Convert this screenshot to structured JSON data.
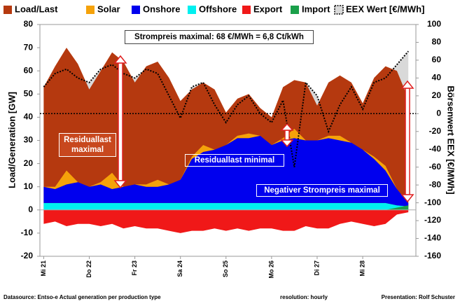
{
  "chart_data": {
    "type": "area",
    "legend_position": "top",
    "x": [
      0,
      6,
      12,
      18,
      24,
      30,
      36,
      42,
      48,
      54,
      60,
      66,
      72,
      78,
      84,
      90,
      96,
      102,
      108,
      114,
      120,
      126,
      132,
      138,
      144,
      150,
      156,
      162,
      168,
      174,
      180,
      186,
      192
    ],
    "xlim": [
      -2,
      196
    ],
    "xticks": [
      {
        "value": 0,
        "label": "Mi 21"
      },
      {
        "value": 24,
        "label": "Do 22"
      },
      {
        "value": 48,
        "label": "Fr 23"
      },
      {
        "value": 72,
        "label": "Sa 24"
      },
      {
        "value": 96,
        "label": "So 25"
      },
      {
        "value": 120,
        "label": "Mo 26"
      },
      {
        "value": 144,
        "label": "Di 27"
      },
      {
        "value": 168,
        "label": "Mi 28"
      }
    ],
    "ylabel": "Load/Generation  [GW]",
    "ylim": [
      -20,
      80
    ],
    "yticks": [
      -20,
      -10,
      0,
      10,
      20,
      30,
      40,
      50,
      60,
      70,
      80
    ],
    "y2label": "Börsenwert  EEX  [€/MWh]",
    "y2lim": [
      -160,
      100
    ],
    "y2ticks": [
      -160,
      -140,
      -120,
      -100,
      -80,
      -60,
      -40,
      -20,
      0,
      20,
      40,
      60,
      80,
      100
    ],
    "series": [
      {
        "name": "Load/Last",
        "color": "#b5390f",
        "values": [
          53,
          62,
          70,
          63,
          52,
          60,
          68,
          64,
          55,
          62,
          64,
          57,
          47,
          52,
          55,
          52,
          42,
          48,
          50,
          44,
          40,
          53,
          56,
          55,
          45,
          55,
          58,
          55,
          46,
          57,
          62,
          60,
          48
        ]
      },
      {
        "name": "Solar",
        "color": "#f5a20a",
        "stacked": true,
        "values": [
          0,
          1,
          6,
          0,
          0,
          1,
          7,
          0,
          0,
          1,
          3,
          0,
          0,
          1,
          3,
          0,
          0,
          1,
          2,
          0,
          0,
          1,
          4,
          0,
          0,
          1,
          2,
          0,
          0,
          1,
          2,
          0,
          0
        ]
      },
      {
        "name": "Onshore",
        "color": "#0000ee",
        "stacked": true,
        "values": [
          7,
          6,
          8,
          9,
          7,
          8,
          6,
          7,
          8,
          7,
          7,
          8,
          10,
          19,
          22,
          23,
          25,
          28,
          28,
          29,
          25,
          27,
          28,
          27,
          27,
          28,
          27,
          26,
          23,
          19,
          14,
          7,
          1.5
        ]
      },
      {
        "name": "Offshore",
        "color": "#00f0f0",
        "stacked": true,
        "values": [
          3,
          3,
          3,
          3,
          3,
          3,
          3,
          3,
          3,
          3,
          3,
          3,
          3,
          3,
          3,
          3,
          3,
          3,
          3,
          3,
          3,
          3,
          3,
          3,
          3,
          3,
          3,
          3,
          3,
          3,
          3,
          2,
          1.5
        ]
      },
      {
        "name": "Export",
        "color": "#f01818",
        "values": [
          -6,
          -5,
          -7,
          -6,
          -6,
          -7,
          -6,
          -8,
          -7,
          -8,
          -8,
          -9,
          -10,
          -9,
          -9,
          -8,
          -9,
          -8,
          -9,
          -8,
          -8,
          -9,
          -9,
          -7,
          -8,
          -8,
          -6,
          -5,
          -6,
          -7,
          -6,
          -2,
          -1
        ]
      },
      {
        "name": "Import",
        "color": "#1aa04a",
        "values": [
          0,
          0,
          0,
          0,
          0,
          0,
          0,
          0,
          0,
          0,
          0,
          0,
          0,
          0,
          0,
          0,
          0,
          0,
          0,
          0,
          0,
          0,
          0,
          0,
          0,
          0,
          0,
          0,
          0,
          0,
          0,
          1,
          2
        ]
      },
      {
        "name": "EEX Wert [€/MWh]",
        "color": "#000000",
        "fill": "#d9d9d9",
        "style": "dotted",
        "axis": "y2",
        "values": [
          30,
          45,
          50,
          40,
          35,
          50,
          55,
          45,
          40,
          50,
          45,
          20,
          -5,
          30,
          35,
          10,
          -10,
          10,
          20,
          0,
          -10,
          15,
          -60,
          35,
          20,
          -20,
          10,
          30,
          5,
          35,
          40,
          55,
          70
        ]
      }
    ],
    "annotations": [
      "Strompreis maximal: 68 €/MWh = 6,8 Ct/kWh",
      "Residuallast maximal",
      "Residuallast minimal",
      "Negativer Strompreis maximal"
    ],
    "footer": [
      "Datasource: Entso-e  Actual generation per production type",
      "resolution: hourly",
      "Presentation:  Rolf Schuster"
    ]
  }
}
